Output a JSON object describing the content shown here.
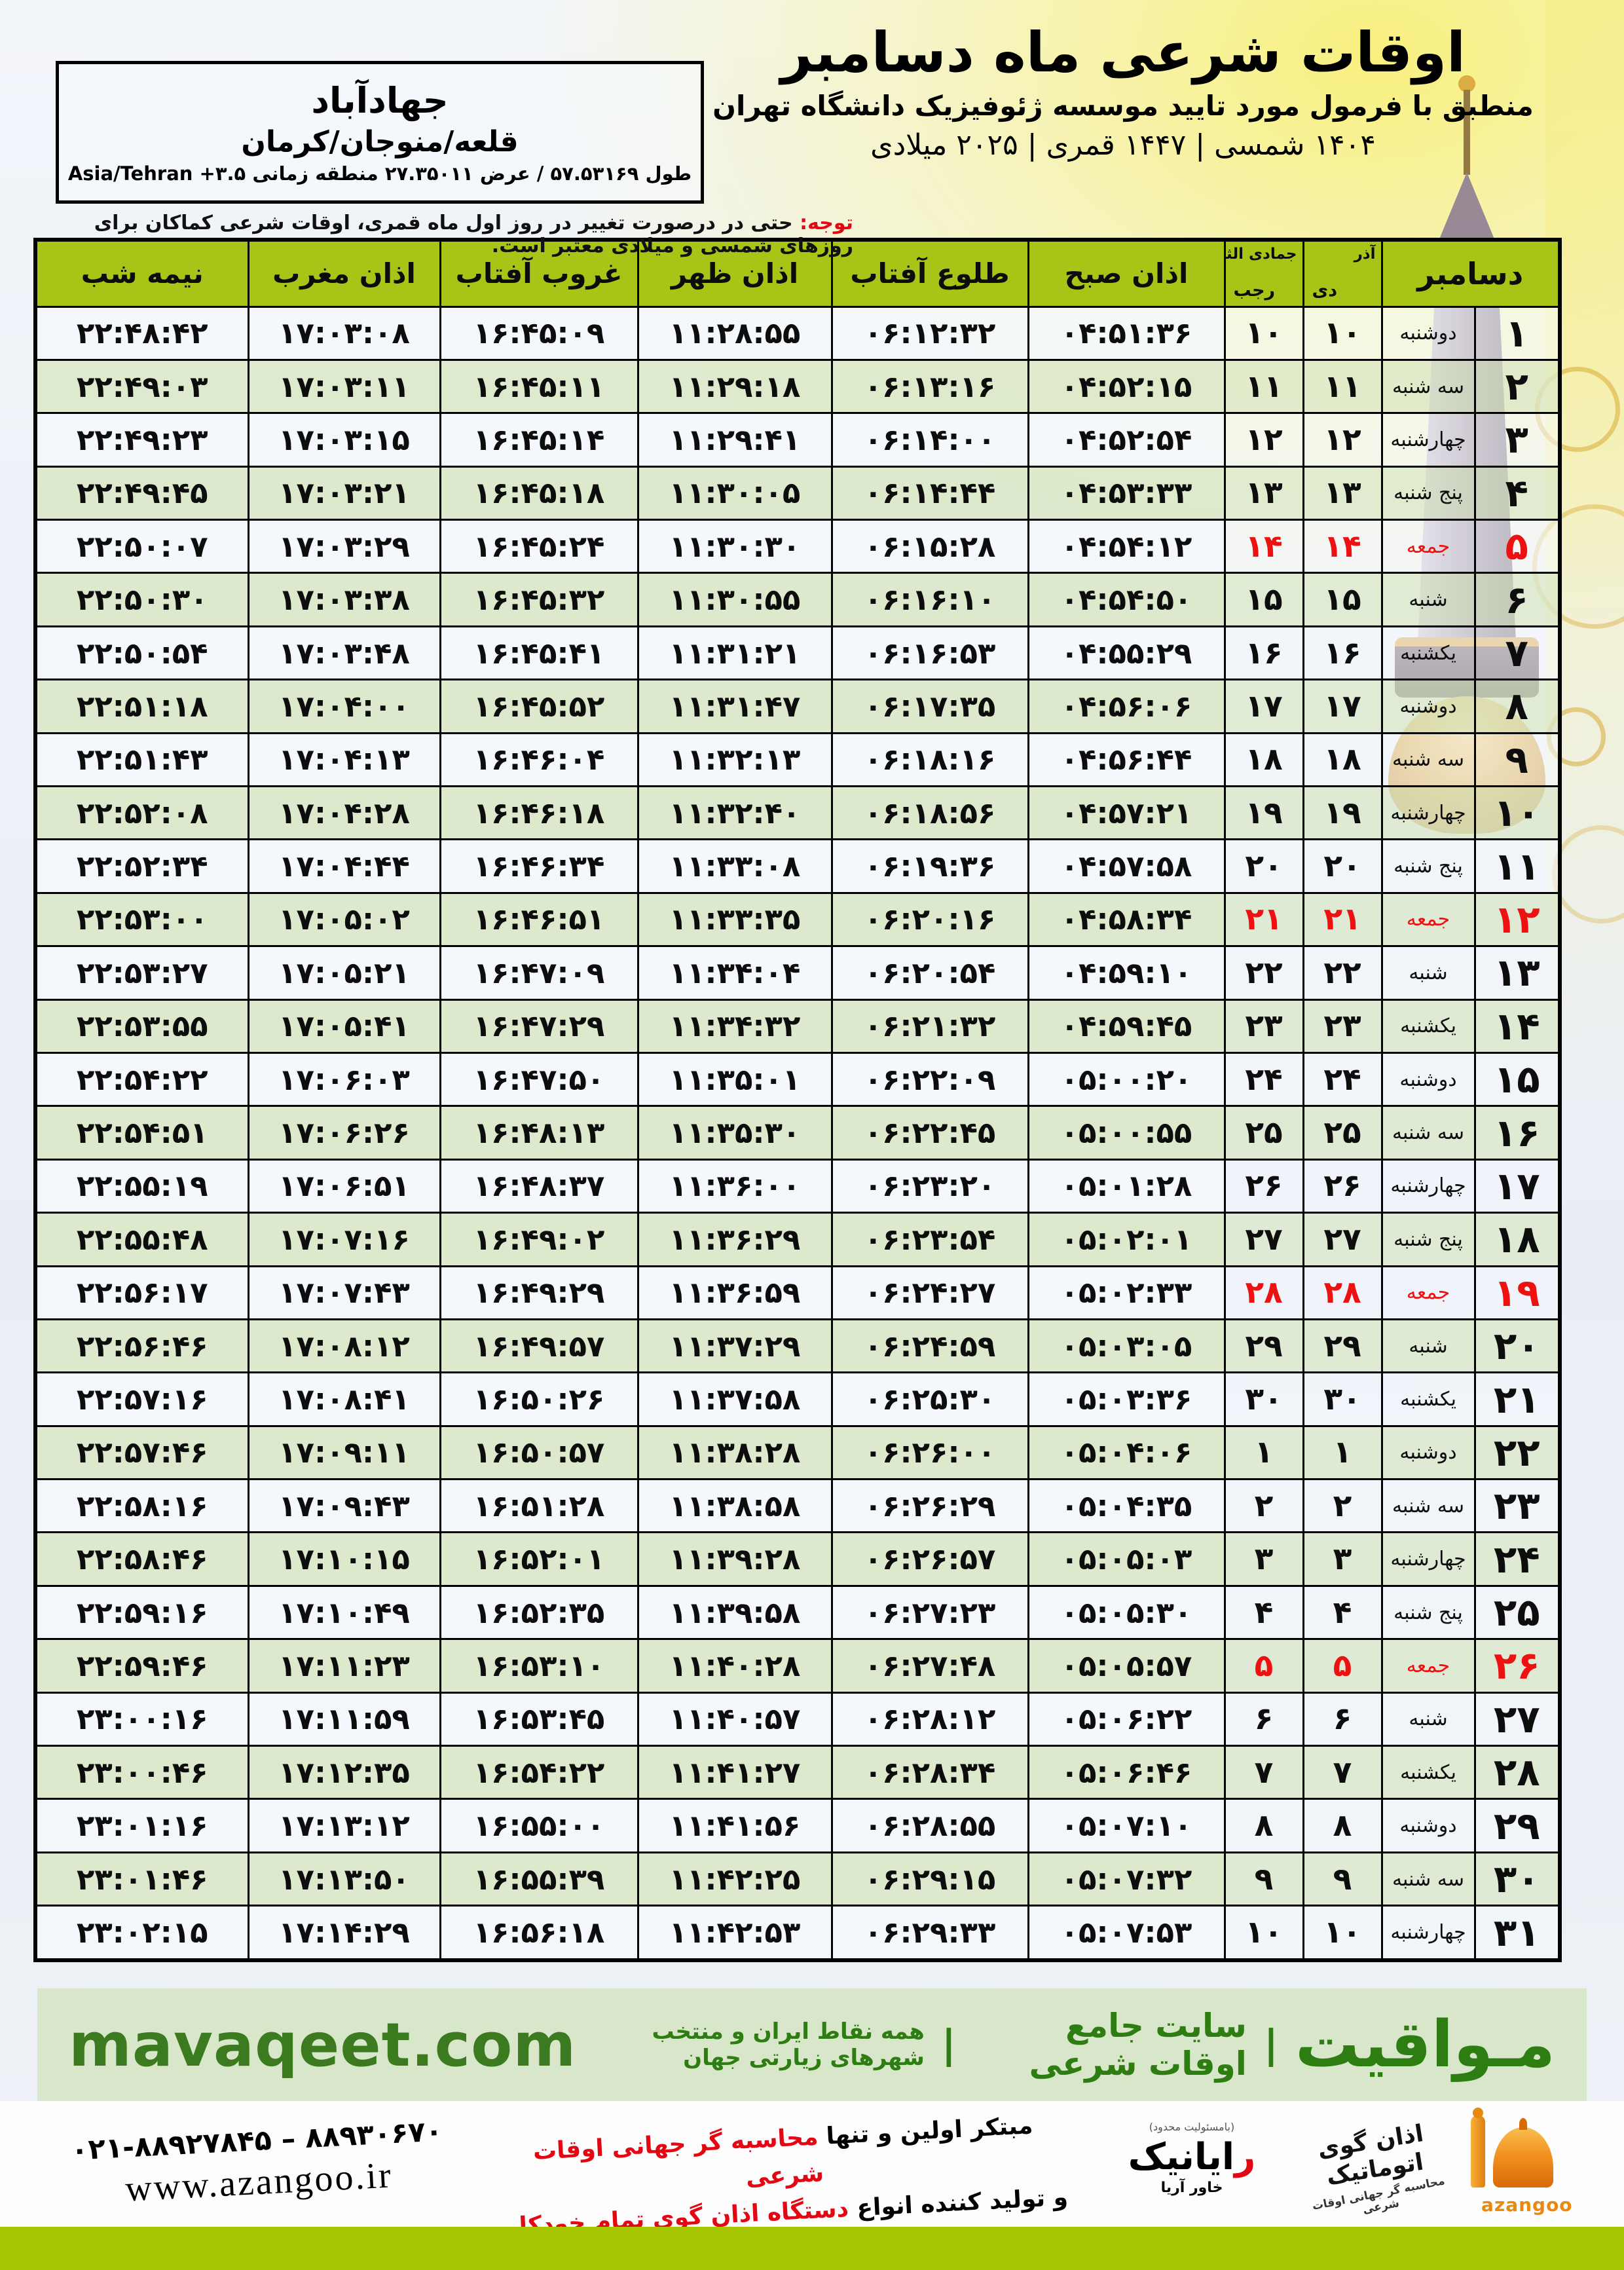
{
  "header": {
    "title": "اوقات شرعی ماه دسامبر",
    "subtitle": "منطبق با فرمول مورد تایید موسسه ژئوفیزیک دانشگاه تهران",
    "years": "۱۴۰۴ شمسی | ۱۴۴۷ قمری | ۲۰۲۵ میلادی",
    "location": {
      "name": "جهادآباد",
      "region": "قلعه/منوجان/کرمان",
      "coords": "طول ۵۷.۵۳۱۶۹ / عرض ۲۷.۳۵۰۱۱ منطقه زمانی ۳.۵+ Asia/Tehran"
    },
    "notice_label": "توجه:",
    "notice_text": "حتی در درصورت تغییر در روز اول ماه قمری، اوقات شرعی کماکان برای روزهای شمسی و میلادی معتبر است."
  },
  "table": {
    "month_label": "دسامبر",
    "solar_month": {
      "top": "آذر",
      "bottom": "دی"
    },
    "lunar_month": {
      "top": "جمادی الثانی",
      "bottom": "رجب"
    },
    "time_columns": [
      "اذان صبح",
      "طلوع آفتاب",
      "اذان ظهر",
      "غروب آفتاب",
      "اذان مغرب",
      "نیمه شب"
    ],
    "row_keys": [
      "day",
      "weekday",
      "solar",
      "lunar",
      "fajr",
      "sunrise",
      "dhuhr",
      "sunset",
      "maghrib",
      "midnight"
    ],
    "rows": [
      {
        "day": "۱",
        "weekday": "دوشنبه",
        "solar": "۱۰",
        "lunar": "۱۰",
        "fajr": "۰۴:۵۱:۳۶",
        "sunrise": "۰۶:۱۲:۳۲",
        "dhuhr": "۱۱:۲۸:۵۵",
        "sunset": "۱۶:۴۵:۰۹",
        "maghrib": "۱۷:۰۳:۰۸",
        "midnight": "۲۲:۴۸:۴۲",
        "friday": false
      },
      {
        "day": "۲",
        "weekday": "سه شنبه",
        "solar": "۱۱",
        "lunar": "۱۱",
        "fajr": "۰۴:۵۲:۱۵",
        "sunrise": "۰۶:۱۳:۱۶",
        "dhuhr": "۱۱:۲۹:۱۸",
        "sunset": "۱۶:۴۵:۱۱",
        "maghrib": "۱۷:۰۳:۱۱",
        "midnight": "۲۲:۴۹:۰۳",
        "friday": false
      },
      {
        "day": "۳",
        "weekday": "چهارشنبه",
        "solar": "۱۲",
        "lunar": "۱۲",
        "fajr": "۰۴:۵۲:۵۴",
        "sunrise": "۰۶:۱۴:۰۰",
        "dhuhr": "۱۱:۲۹:۴۱",
        "sunset": "۱۶:۴۵:۱۴",
        "maghrib": "۱۷:۰۳:۱۵",
        "midnight": "۲۲:۴۹:۲۳",
        "friday": false
      },
      {
        "day": "۴",
        "weekday": "پنج شنبه",
        "solar": "۱۳",
        "lunar": "۱۳",
        "fajr": "۰۴:۵۳:۳۳",
        "sunrise": "۰۶:۱۴:۴۴",
        "dhuhr": "۱۱:۳۰:۰۵",
        "sunset": "۱۶:۴۵:۱۸",
        "maghrib": "۱۷:۰۳:۲۱",
        "midnight": "۲۲:۴۹:۴۵",
        "friday": false
      },
      {
        "day": "۵",
        "weekday": "جمعه",
        "solar": "۱۴",
        "lunar": "۱۴",
        "fajr": "۰۴:۵۴:۱۲",
        "sunrise": "۰۶:۱۵:۲۸",
        "dhuhr": "۱۱:۳۰:۳۰",
        "sunset": "۱۶:۴۵:۲۴",
        "maghrib": "۱۷:۰۳:۲۹",
        "midnight": "۲۲:۵۰:۰۷",
        "friday": true
      },
      {
        "day": "۶",
        "weekday": "شنبه",
        "solar": "۱۵",
        "lunar": "۱۵",
        "fajr": "۰۴:۵۴:۵۰",
        "sunrise": "۰۶:۱۶:۱۰",
        "dhuhr": "۱۱:۳۰:۵۵",
        "sunset": "۱۶:۴۵:۳۲",
        "maghrib": "۱۷:۰۳:۳۸",
        "midnight": "۲۲:۵۰:۳۰",
        "friday": false
      },
      {
        "day": "۷",
        "weekday": "یکشنبه",
        "solar": "۱۶",
        "lunar": "۱۶",
        "fajr": "۰۴:۵۵:۲۹",
        "sunrise": "۰۶:۱۶:۵۳",
        "dhuhr": "۱۱:۳۱:۲۱",
        "sunset": "۱۶:۴۵:۴۱",
        "maghrib": "۱۷:۰۳:۴۸",
        "midnight": "۲۲:۵۰:۵۴",
        "friday": false
      },
      {
        "day": "۸",
        "weekday": "دوشنبه",
        "solar": "۱۷",
        "lunar": "۱۷",
        "fajr": "۰۴:۵۶:۰۶",
        "sunrise": "۰۶:۱۷:۳۵",
        "dhuhr": "۱۱:۳۱:۴۷",
        "sunset": "۱۶:۴۵:۵۲",
        "maghrib": "۱۷:۰۴:۰۰",
        "midnight": "۲۲:۵۱:۱۸",
        "friday": false
      },
      {
        "day": "۹",
        "weekday": "سه شنبه",
        "solar": "۱۸",
        "lunar": "۱۸",
        "fajr": "۰۴:۵۶:۴۴",
        "sunrise": "۰۶:۱۸:۱۶",
        "dhuhr": "۱۱:۳۲:۱۳",
        "sunset": "۱۶:۴۶:۰۴",
        "maghrib": "۱۷:۰۴:۱۳",
        "midnight": "۲۲:۵۱:۴۳",
        "friday": false
      },
      {
        "day": "۱۰",
        "weekday": "چهارشنبه",
        "solar": "۱۹",
        "lunar": "۱۹",
        "fajr": "۰۴:۵۷:۲۱",
        "sunrise": "۰۶:۱۸:۵۶",
        "dhuhr": "۱۱:۳۲:۴۰",
        "sunset": "۱۶:۴۶:۱۸",
        "maghrib": "۱۷:۰۴:۲۸",
        "midnight": "۲۲:۵۲:۰۸",
        "friday": false
      },
      {
        "day": "۱۱",
        "weekday": "پنج شنبه",
        "solar": "۲۰",
        "lunar": "۲۰",
        "fajr": "۰۴:۵۷:۵۸",
        "sunrise": "۰۶:۱۹:۳۶",
        "dhuhr": "۱۱:۳۳:۰۸",
        "sunset": "۱۶:۴۶:۳۴",
        "maghrib": "۱۷:۰۴:۴۴",
        "midnight": "۲۲:۵۲:۳۴",
        "friday": false
      },
      {
        "day": "۱۲",
        "weekday": "جمعه",
        "solar": "۲۱",
        "lunar": "۲۱",
        "fajr": "۰۴:۵۸:۳۴",
        "sunrise": "۰۶:۲۰:۱۶",
        "dhuhr": "۱۱:۳۳:۳۵",
        "sunset": "۱۶:۴۶:۵۱",
        "maghrib": "۱۷:۰۵:۰۲",
        "midnight": "۲۲:۵۳:۰۰",
        "friday": true
      },
      {
        "day": "۱۳",
        "weekday": "شنبه",
        "solar": "۲۲",
        "lunar": "۲۲",
        "fajr": "۰۴:۵۹:۱۰",
        "sunrise": "۰۶:۲۰:۵۴",
        "dhuhr": "۱۱:۳۴:۰۴",
        "sunset": "۱۶:۴۷:۰۹",
        "maghrib": "۱۷:۰۵:۲۱",
        "midnight": "۲۲:۵۳:۲۷",
        "friday": false
      },
      {
        "day": "۱۴",
        "weekday": "یکشنبه",
        "solar": "۲۳",
        "lunar": "۲۳",
        "fajr": "۰۴:۵۹:۴۵",
        "sunrise": "۰۶:۲۱:۳۲",
        "dhuhr": "۱۱:۳۴:۳۲",
        "sunset": "۱۶:۴۷:۲۹",
        "maghrib": "۱۷:۰۵:۴۱",
        "midnight": "۲۲:۵۳:۵۵",
        "friday": false
      },
      {
        "day": "۱۵",
        "weekday": "دوشنبه",
        "solar": "۲۴",
        "lunar": "۲۴",
        "fajr": "۰۵:۰۰:۲۰",
        "sunrise": "۰۶:۲۲:۰۹",
        "dhuhr": "۱۱:۳۵:۰۱",
        "sunset": "۱۶:۴۷:۵۰",
        "maghrib": "۱۷:۰۶:۰۳",
        "midnight": "۲۲:۵۴:۲۲",
        "friday": false
      },
      {
        "day": "۱۶",
        "weekday": "سه شنبه",
        "solar": "۲۵",
        "lunar": "۲۵",
        "fajr": "۰۵:۰۰:۵۵",
        "sunrise": "۰۶:۲۲:۴۵",
        "dhuhr": "۱۱:۳۵:۳۰",
        "sunset": "۱۶:۴۸:۱۳",
        "maghrib": "۱۷:۰۶:۲۶",
        "midnight": "۲۲:۵۴:۵۱",
        "friday": false
      },
      {
        "day": "۱۷",
        "weekday": "چهارشنبه",
        "solar": "۲۶",
        "lunar": "۲۶",
        "fajr": "۰۵:۰۱:۲۸",
        "sunrise": "۰۶:۲۳:۲۰",
        "dhuhr": "۱۱:۳۶:۰۰",
        "sunset": "۱۶:۴۸:۳۷",
        "maghrib": "۱۷:۰۶:۵۱",
        "midnight": "۲۲:۵۵:۱۹",
        "friday": false
      },
      {
        "day": "۱۸",
        "weekday": "پنج شنبه",
        "solar": "۲۷",
        "lunar": "۲۷",
        "fajr": "۰۵:۰۲:۰۱",
        "sunrise": "۰۶:۲۳:۵۴",
        "dhuhr": "۱۱:۳۶:۲۹",
        "sunset": "۱۶:۴۹:۰۲",
        "maghrib": "۱۷:۰۷:۱۶",
        "midnight": "۲۲:۵۵:۴۸",
        "friday": false
      },
      {
        "day": "۱۹",
        "weekday": "جمعه",
        "solar": "۲۸",
        "lunar": "۲۸",
        "fajr": "۰۵:۰۲:۳۳",
        "sunrise": "۰۶:۲۴:۲۷",
        "dhuhr": "۱۱:۳۶:۵۹",
        "sunset": "۱۶:۴۹:۲۹",
        "maghrib": "۱۷:۰۷:۴۳",
        "midnight": "۲۲:۵۶:۱۷",
        "friday": true
      },
      {
        "day": "۲۰",
        "weekday": "شنبه",
        "solar": "۲۹",
        "lunar": "۲۹",
        "fajr": "۰۵:۰۳:۰۵",
        "sunrise": "۰۶:۲۴:۵۹",
        "dhuhr": "۱۱:۳۷:۲۹",
        "sunset": "۱۶:۴۹:۵۷",
        "maghrib": "۱۷:۰۸:۱۲",
        "midnight": "۲۲:۵۶:۴۶",
        "friday": false
      },
      {
        "day": "۲۱",
        "weekday": "یکشنبه",
        "solar": "۳۰",
        "lunar": "۳۰",
        "fajr": "۰۵:۰۳:۳۶",
        "sunrise": "۰۶:۲۵:۳۰",
        "dhuhr": "۱۱:۳۷:۵۸",
        "sunset": "۱۶:۵۰:۲۶",
        "maghrib": "۱۷:۰۸:۴۱",
        "midnight": "۲۲:۵۷:۱۶",
        "friday": false
      },
      {
        "day": "۲۲",
        "weekday": "دوشنبه",
        "solar": "۱",
        "lunar": "۱",
        "fajr": "۰۵:۰۴:۰۶",
        "sunrise": "۰۶:۲۶:۰۰",
        "dhuhr": "۱۱:۳۸:۲۸",
        "sunset": "۱۶:۵۰:۵۷",
        "maghrib": "۱۷:۰۹:۱۱",
        "midnight": "۲۲:۵۷:۴۶",
        "friday": false
      },
      {
        "day": "۲۳",
        "weekday": "سه شنبه",
        "solar": "۲",
        "lunar": "۲",
        "fajr": "۰۵:۰۴:۳۵",
        "sunrise": "۰۶:۲۶:۲۹",
        "dhuhr": "۱۱:۳۸:۵۸",
        "sunset": "۱۶:۵۱:۲۸",
        "maghrib": "۱۷:۰۹:۴۳",
        "midnight": "۲۲:۵۸:۱۶",
        "friday": false
      },
      {
        "day": "۲۴",
        "weekday": "چهارشنبه",
        "solar": "۳",
        "lunar": "۳",
        "fajr": "۰۵:۰۵:۰۳",
        "sunrise": "۰۶:۲۶:۵۷",
        "dhuhr": "۱۱:۳۹:۲۸",
        "sunset": "۱۶:۵۲:۰۱",
        "maghrib": "۱۷:۱۰:۱۵",
        "midnight": "۲۲:۵۸:۴۶",
        "friday": false
      },
      {
        "day": "۲۵",
        "weekday": "پنج شنبه",
        "solar": "۴",
        "lunar": "۴",
        "fajr": "۰۵:۰۵:۳۰",
        "sunrise": "۰۶:۲۷:۲۳",
        "dhuhr": "۱۱:۳۹:۵۸",
        "sunset": "۱۶:۵۲:۳۵",
        "maghrib": "۱۷:۱۰:۴۹",
        "midnight": "۲۲:۵۹:۱۶",
        "friday": false
      },
      {
        "day": "۲۶",
        "weekday": "جمعه",
        "solar": "۵",
        "lunar": "۵",
        "fajr": "۰۵:۰۵:۵۷",
        "sunrise": "۰۶:۲۷:۴۸",
        "dhuhr": "۱۱:۴۰:۲۸",
        "sunset": "۱۶:۵۳:۱۰",
        "maghrib": "۱۷:۱۱:۲۳",
        "midnight": "۲۲:۵۹:۴۶",
        "friday": true
      },
      {
        "day": "۲۷",
        "weekday": "شنبه",
        "solar": "۶",
        "lunar": "۶",
        "fajr": "۰۵:۰۶:۲۲",
        "sunrise": "۰۶:۲۸:۱۲",
        "dhuhr": "۱۱:۴۰:۵۷",
        "sunset": "۱۶:۵۳:۴۵",
        "maghrib": "۱۷:۱۱:۵۹",
        "midnight": "۲۳:۰۰:۱۶",
        "friday": false
      },
      {
        "day": "۲۸",
        "weekday": "یکشنبه",
        "solar": "۷",
        "lunar": "۷",
        "fajr": "۰۵:۰۶:۴۶",
        "sunrise": "۰۶:۲۸:۳۴",
        "dhuhr": "۱۱:۴۱:۲۷",
        "sunset": "۱۶:۵۴:۲۲",
        "maghrib": "۱۷:۱۲:۳۵",
        "midnight": "۲۳:۰۰:۴۶",
        "friday": false
      },
      {
        "day": "۲۹",
        "weekday": "دوشنبه",
        "solar": "۸",
        "lunar": "۸",
        "fajr": "۰۵:۰۷:۱۰",
        "sunrise": "۰۶:۲۸:۵۵",
        "dhuhr": "۱۱:۴۱:۵۶",
        "sunset": "۱۶:۵۵:۰۰",
        "maghrib": "۱۷:۱۳:۱۲",
        "midnight": "۲۳:۰۱:۱۶",
        "friday": false
      },
      {
        "day": "۳۰",
        "weekday": "سه شنبه",
        "solar": "۹",
        "lunar": "۹",
        "fajr": "۰۵:۰۷:۳۲",
        "sunrise": "۰۶:۲۹:۱۵",
        "dhuhr": "۱۱:۴۲:۲۵",
        "sunset": "۱۶:۵۵:۳۹",
        "maghrib": "۱۷:۱۳:۵۰",
        "midnight": "۲۳:۰۱:۴۶",
        "friday": false
      },
      {
        "day": "۳۱",
        "weekday": "چهارشنبه",
        "solar": "۱۰",
        "lunar": "۱۰",
        "fajr": "۰۵:۰۷:۵۳",
        "sunrise": "۰۶:۲۹:۳۳",
        "dhuhr": "۱۱:۴۲:۵۳",
        "sunset": "۱۶:۵۶:۱۸",
        "maghrib": "۱۷:۱۴:۲۹",
        "midnight": "۲۳:۰۲:۱۵",
        "friday": false
      }
    ]
  },
  "footer_mavaqeet": {
    "brand_fa": "مـواقیت",
    "separator": "|",
    "tagline_1": "سایت جامع اوقات شرعی",
    "tagline_2": "همه نقاط ایران و منتخب شهرهای زیارتی جهان",
    "site": "mavaqeet.com"
  },
  "footer_azangoo": {
    "phone": "۰۲۱-۸۸۹۲۷۸۴۵ – ۸۸۹۳۰۶۷۰",
    "site": "www.azangoo.ir",
    "slogan_line1_black": "مبتکر اولین و تنها",
    "slogan_line1_red": "محاسبه گر جهانی اوقات شرعی",
    "slogan_line2_black": "و تولید کننده انواع",
    "slogan_line2_red": "دستگاه اذان گوی تمام خودکار ماهواره ای",
    "rayanik_note": "(بامسئولیت محدود)",
    "rayanik_name_first": "ر",
    "rayanik_name_rest": "ایانیک",
    "rayanik_sub": "خاور آریا",
    "azangoo_fa": "اذان گوی اتوماتیک",
    "azangoo_fa_sub": "محاسبه گر جهانی اوقات شرعی",
    "azangoo_en": "azangoo"
  },
  "colors": {
    "header_green": "#a9c417",
    "row_green": "#dbe8c9",
    "row_light": "#f4f7fc",
    "friday_red": "#ee1111",
    "notice_red": "#e30613",
    "mavaqeet_band": "#d8e7c9",
    "mavaqeet_text": "#2e7d13",
    "bottom_band": "#a7c501",
    "azangoo_orange": "#e8890f"
  }
}
